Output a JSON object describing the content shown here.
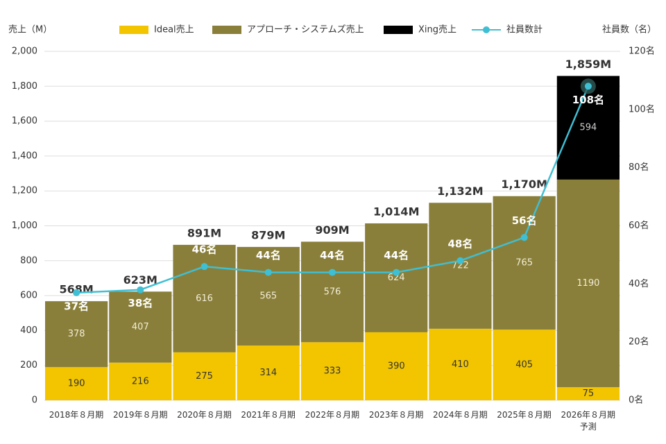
{
  "chart_data": {
    "type": "stacked_bar_line",
    "y_label": "売上（M）",
    "y2_label": "社員数（名）",
    "categories": [
      "2018年８月期",
      "2019年８月期",
      "2020年８月期",
      "2021年８月期",
      "2022年８月期",
      "2023年８月期",
      "2024年８月期",
      "2025年８月期",
      "2026年８月期\n予測"
    ],
    "series": [
      {
        "name": "Ideal売上",
        "color": "#f2c500",
        "label_color": "#333333",
        "values": [
          190,
          216,
          275,
          314,
          333,
          390,
          410,
          405,
          75
        ]
      },
      {
        "name": "アプローチ・システムズ売上",
        "color": "#8a7f3a",
        "label_color": "#f0ecd6",
        "values": [
          378,
          407,
          616,
          565,
          576,
          624,
          722,
          765,
          1190
        ]
      },
      {
        "name": "Xing売上",
        "color": "#000000",
        "label_color": "#cccccc",
        "values": [
          null,
          null,
          null,
          null,
          null,
          null,
          null,
          null,
          594
        ]
      },
      {
        "name": "社員数計",
        "color": "#3fbfd3",
        "type": "line",
        "axis": "y2",
        "values": [
          37,
          38,
          46,
          44,
          44,
          44,
          48,
          56,
          108
        ],
        "value_labels": [
          "37名",
          "38名",
          "46名",
          "44名",
          "44名",
          "44名",
          "48名",
          "56名",
          "108名"
        ]
      }
    ],
    "totals": {
      "values": [
        568,
        623,
        891,
        879,
        909,
        1014,
        1132,
        1170,
        1859
      ],
      "value_labels": [
        "568M",
        "623M",
        "891M",
        "879M",
        "909M",
        "1,014M",
        "1,132M",
        "1,170M",
        "1,859M"
      ]
    },
    "ylim": [
      0,
      2000
    ],
    "yticks": [
      0,
      200,
      400,
      600,
      800,
      {
        "value": 1000,
        "label": "1,000"
      },
      {
        "value": 1200,
        "label": "1,200"
      },
      {
        "value": 1400,
        "label": "1,400"
      },
      {
        "value": 1600,
        "label": "1,600"
      },
      {
        "value": 1800,
        "label": "1,800"
      },
      {
        "value": 2000,
        "label": "2,000"
      }
    ],
    "y2lim": [
      0,
      120
    ],
    "y2ticks": [
      {
        "value": 0,
        "label": "0名"
      },
      {
        "value": 20,
        "label": "20名"
      },
      {
        "value": 40,
        "label": "40名"
      },
      {
        "value": 60,
        "label": "60名"
      },
      {
        "value": 80,
        "label": "80名"
      },
      {
        "value": 100,
        "label": "100名"
      },
      {
        "value": 120,
        "label": "120名"
      }
    ],
    "grid": true,
    "legend": "top"
  }
}
